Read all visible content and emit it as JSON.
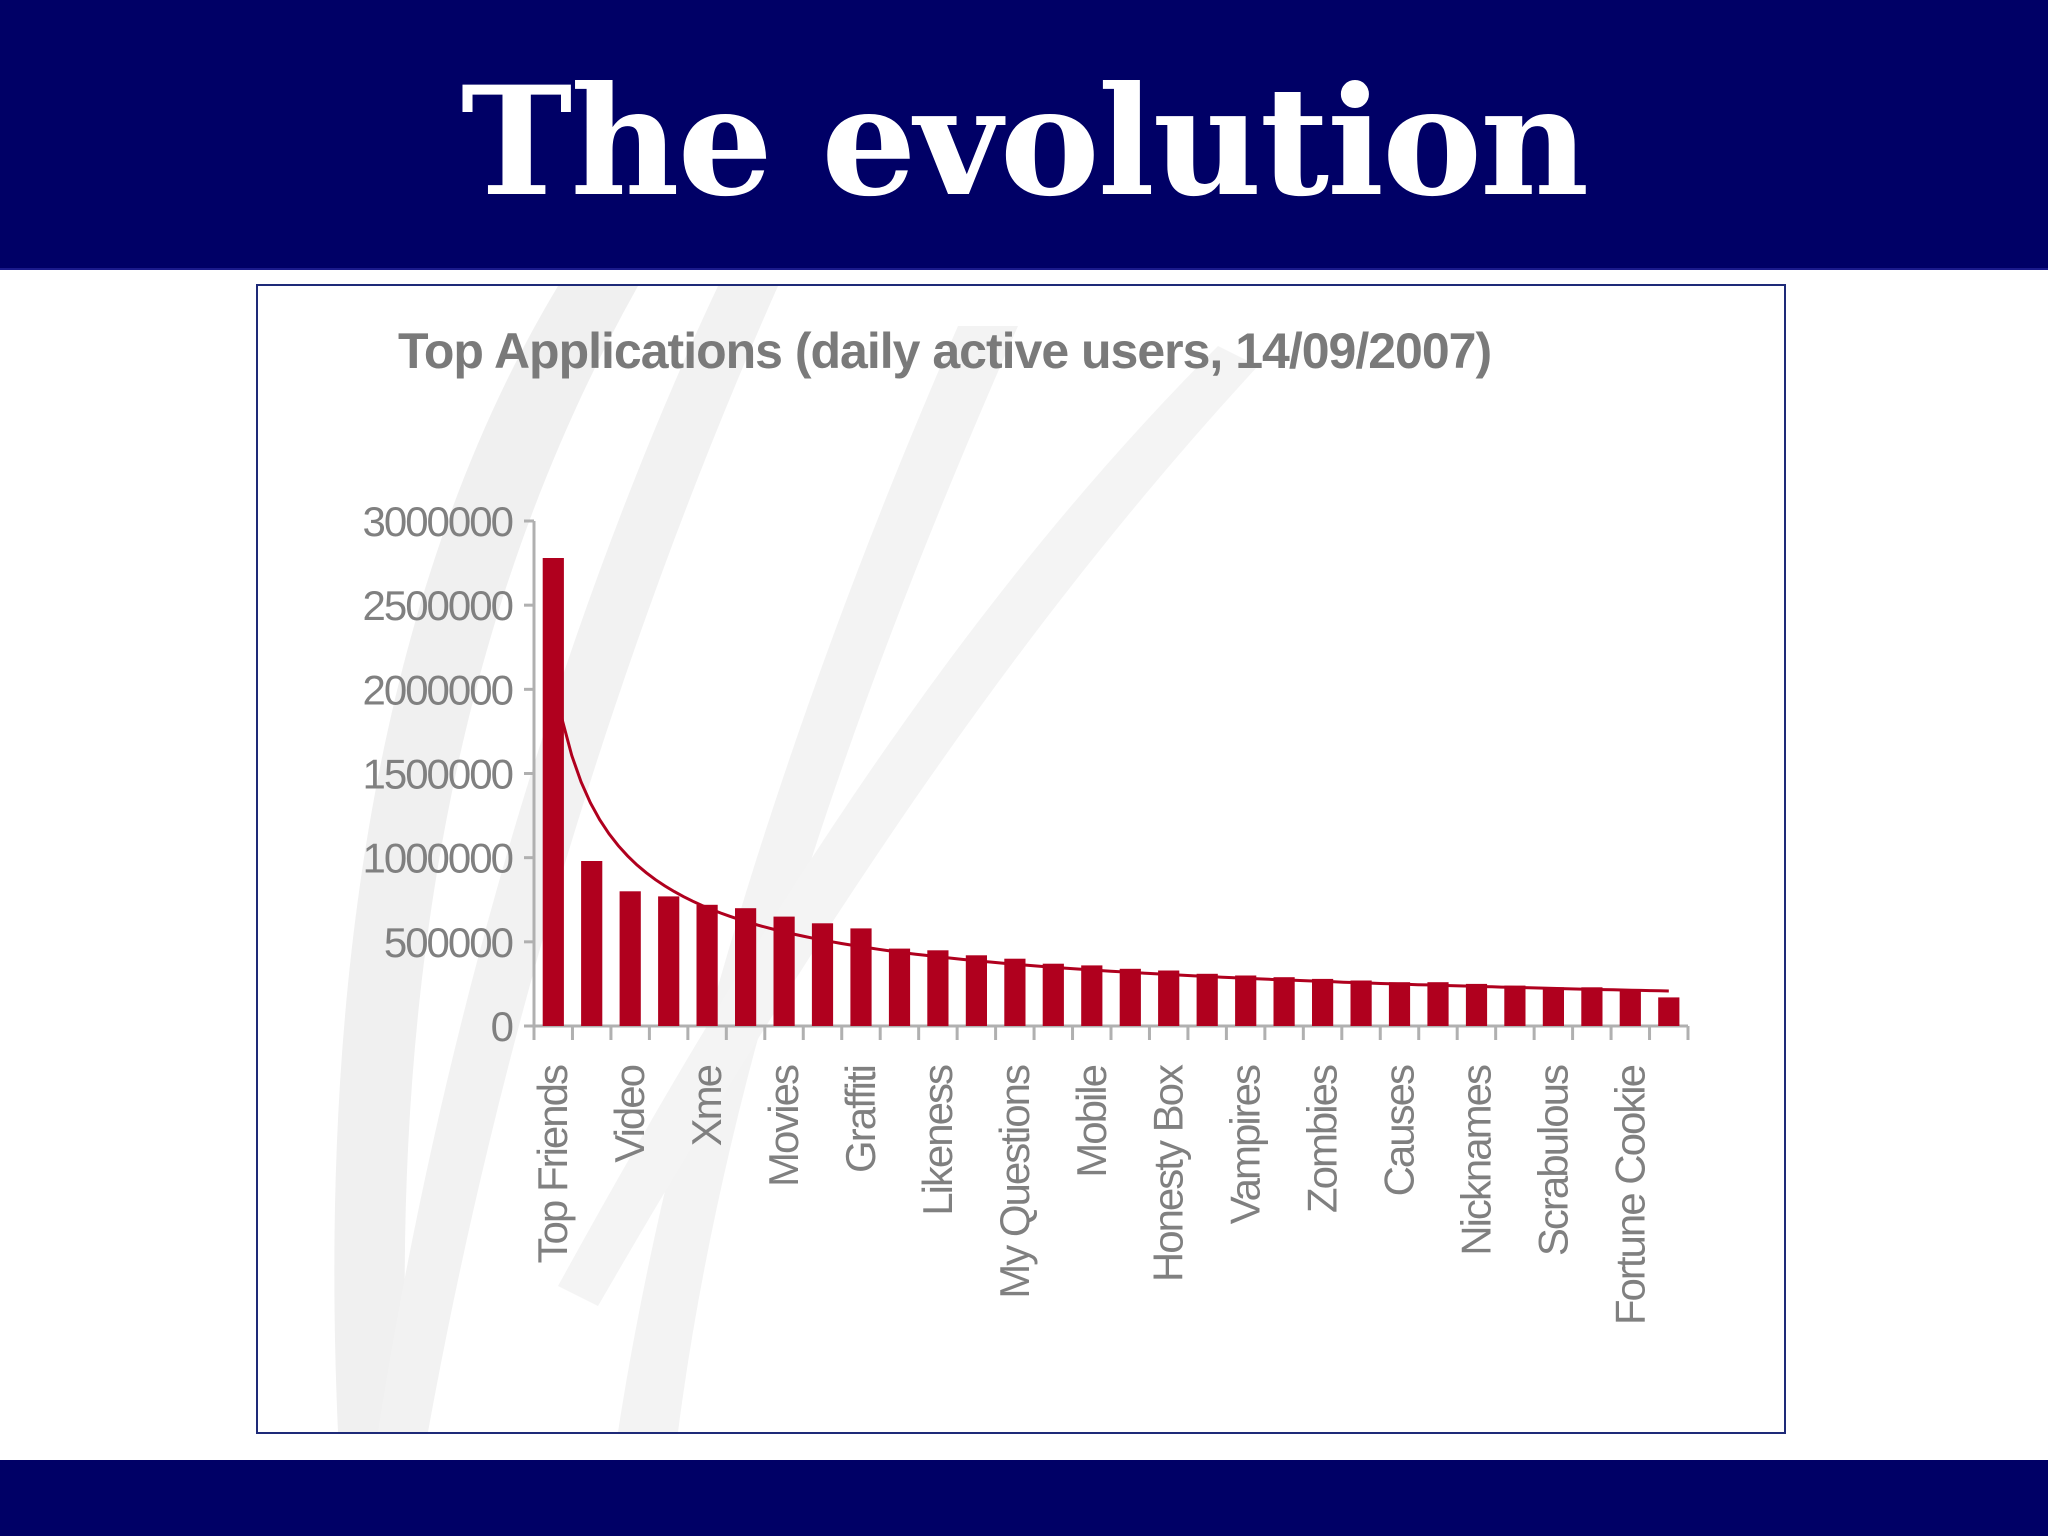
{
  "slide": {
    "title": "The evolution"
  },
  "colors": {
    "band": "#000066",
    "bar": "#b0001e",
    "axis_text": "#808080"
  },
  "chart_data": {
    "type": "bar",
    "title": "Top Applications (daily active users, 14/09/2007)",
    "xlabel": "",
    "ylabel": "",
    "ylim": [
      0,
      3000000
    ],
    "yticks": [
      0,
      500000,
      1000000,
      1500000,
      2000000,
      2500000,
      3000000
    ],
    "grid": false,
    "legend": "none",
    "trendline": "power",
    "categories": [
      "Top Friends",
      "",
      "Video",
      "",
      "Xme",
      "",
      "Movies",
      "",
      "Graffiti",
      "",
      "Likeness",
      "",
      "My Questions",
      "",
      "Mobile",
      "",
      "Honesty Box",
      "",
      "Vampires",
      "",
      "Zombies",
      "",
      "Causes",
      "",
      "Nicknames",
      "",
      "Scrabulous",
      "",
      "Fortune Cookie",
      ""
    ],
    "values": [
      2780000,
      980000,
      800000,
      770000,
      720000,
      700000,
      650000,
      610000,
      580000,
      460000,
      450000,
      420000,
      400000,
      370000,
      360000,
      340000,
      330000,
      310000,
      300000,
      290000,
      280000,
      270000,
      260000,
      260000,
      250000,
      240000,
      230000,
      230000,
      220000,
      170000
    ]
  }
}
